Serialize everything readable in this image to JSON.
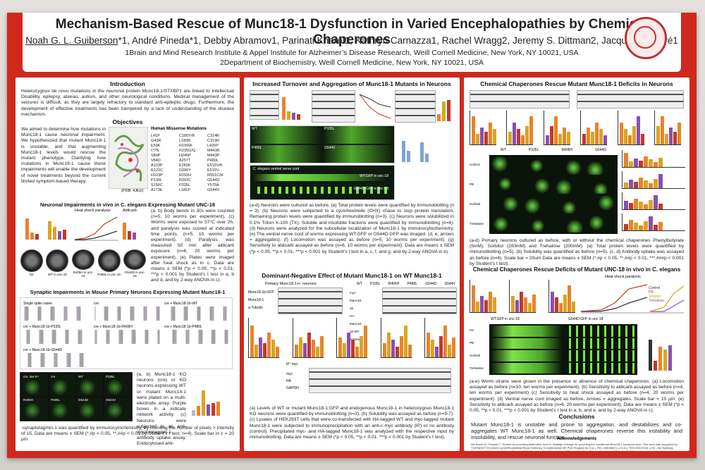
{
  "poster": {
    "title": "Mechanism-Based Rescue of Munc18-1 Dysfunction in Varied Encephalopathies by Chemical Chaperones",
    "authors_underlined": "Noah G. L. Guiberson",
    "authors_rest": "*1, André Pineda*1, Debby Abramov1, Parinati Kharel1, Kathryn Carnazza1, Rachel Wragg2, Jeremy S. Dittman2, Jacqueline Burré1",
    "affiliation1": "1Brain and Mind Research Institute & Appel Institute for Alzheimer’s Disease Research, Weill Cornell Medicine, New York, NY 10021, USA",
    "affiliation2": "2Department of Biochemistry, Weill Cornell Medicine, New York, NY 10021, USA"
  },
  "col1": {
    "intro_heading": "Introduction",
    "intro_text": "Heterozygous de novo mutations in the neuronal protein Munc18-1/STXBP1 are linked to Intellectual Disability, epilepsy, ataxias, autism, and other neurological conditions. Medical management of the seizures is difficult, as they are largely refractory to standard anti-epileptic drugs. Furthermore, the development of effective treatments has been hampered by a lack of understanding of the disease mechanism.",
    "objectives_heading": "Objectives",
    "objectives_text": "We aimed to determine how mutations in Munc18-1 cause neuronal impairment. We hypothesized that mutant Munc18-1 is unstable, and that augmenting Munc18-1 levels would rescue the mutant phenotype. Clarifying how mutations in Munc18-1 cause these impairments will enable the development of novel treatments beyond the current limited symptom-based therapy.",
    "missense_heading": "Human Missense Mutations",
    "missense_list": [
      "L41P",
      "C180Y/R",
      "C314R",
      "G43R",
      "L183R",
      "C319R",
      "E59K",
      "R190W",
      "L426P",
      "I77N",
      "R235G/Q",
      "M443R",
      "S80P",
      "H245P",
      "M443P",
      "V84D",
      "A257T",
      "P480L",
      "A103P",
      "E283K",
      "E515V/K",
      "R122C",
      "D286Y",
      "E515V",
      "H103P",
      "R292H",
      "R551C/H",
      "P130L",
      "R292C",
      "G544D",
      "S156C",
      "P335L",
      "Y575A",
      "A173E",
      "L341P",
      "G544V"
    ],
    "pdb_caption": "(PDB: 4JEU)",
    "celegans_heading": "Neuronal Impairments in vivo in C. elegans Expressing Mutant UNC-18",
    "celegans_caption": "(a, b) Body bends in 30s were counted (n=5, 10 worms per experiment). (c) Worms were exposed to 37°C over 2h, and paralysis was scored at indicated time points. (n=5, 10 worms per experiment). (d) Paralysis was measured 50 min after aldicarb exposure (n=6, 20 worms per experiment). (e) Plates were imaged after heat shock as in c. Data are means ± SEM (*p < 0.05; **p < 0.01; ***p < 0.001 by Student’s t test in a, b and d, and by 2-way ANOVA in c).",
    "heat_shock_label": "Heat shock paralysis",
    "aldicarb_label": "Aldicarb",
    "plate_labels": [
      "N2",
      "WT in unc-18",
      "R405H in unc-18",
      "P480L in unc-18",
      "G544D in unc-18"
    ],
    "synaptic_heading": "Synaptic Impairments in Mouse Primary Neurons Expressing Mutant Munc18-1",
    "synaptic_caption": "(a, b) Munc18-1 KO neurons (cre) or KO neurons expressing WT or mutant Munc18-1 were plated on a multi-electrode array. Purple boxes in a indicate network activity. (c) Neurons were subjected to an anti-synaptotagmin-1 antibody uptake assay. Endocytosed anti-",
    "synaptic_caption_end": "-synaptotagmin-1 was quantified by immunocytochemistry, by counting the number of pixels > intensity of 15. Data are means ± SEM (*,#p < 0.05, **,##p < 0.01 by Student’s t test; n=4). Scale bar in c = 20 µm",
    "mea_labels": [
      "Single spike raster",
      "cre",
      "cre + Munc18-1b-WT",
      "cre + Munc18-1b-P335L",
      "cre + Munc18-1b-R406H",
      "cre + Munc18-1b-P480L",
      "cre + Munc18-1b-G544D"
    ],
    "syt_labels": [
      "cre, low K+",
      "cre",
      "WT",
      "P335L",
      "R406H",
      "P480L",
      "G544D",
      "G544V"
    ]
  },
  "col2": {
    "turnover_heading": "Increased Turnover and Aggregation of Munc18-1 Mutants in Neurons",
    "turnover_caption": "(a-d) Neurons were cultured as before. (a) Total protein levels were quantified by immunoblotting (n = 3). (b) Neurons were subjected to a cycloheximide (CHX) chase to stop protein translation. Remaining protein levels were quantified by immunoblotting (n=3). (c) Neurons were solubilized in 0.1% Triton X-100 (TX). Soluble and insoluble fractions were quantified by immunoblotting (n=4). (d) Neurons were analyzed for the subcellular localization of Munc18-1 by immunocytochemistry. (e) The ventral nerve cord of worms expressing WT:GFP or G544D:GFP was imaged. (d, e; arrows = aggregates). (f) Locomotion was assayed as before (n=5, 10 worms per experiment). (g) Sensitivity to aldicarb assayed as before (n=6, 10 worms per experiment). Data are means ± SEM (*p < 0.05, **p < 0.01, ***p < 0.001 by Student’s t test in a, c, f, and g, and by 2-way ANOVA in b).",
    "nerve_cord_label": "C. elegans ventral nerve cord",
    "nerve_cord_wt": "WT:GFP in unc-18",
    "nerve_cord_mut": "G544D:GFP in unc-18",
    "neuron_panel_labels": [
      "WT",
      "P335L",
      "P480L",
      "G544V"
    ],
    "dn_heading": "Dominant-Negative Effect of Mutant Munc18-1 on WT Munc18-1",
    "dn_caption": "(a) Levels of WT or mutant Munc18-1:GFP and endogenous Munc18-1 in heterozygous Munc18-1 KO neurons were quantified by immunoblotting (n=3). (b) Solubility was assayed as before (n=5-7). (c) Lysates of HEK293T cells that were co-transfected with HA-tagged WT and myc-tagged mutant Munc18-1 were subjected to immunoprecipitation with an anti-c-myc antibody (IP) or no antibody (control). Precipitated myc- and HA-tagged Munc18-1 was analyzed with the respective input by immunoblotting. Data are means ± SEM (*p < 0.05, **p < 0.01, ***p < 0.001 by Student’s t test).",
    "dn_blot_title": "Primary Munc18-1+/- neurons",
    "dn_blot_rows": [
      "Munc18-1b:GFP",
      "Munc18-1",
      "a-Tubulin"
    ],
    "dn_b_columns": [
      "WT",
      "P335L",
      "R406H",
      "P480L",
      "G544D",
      "G544V"
    ],
    "dn_b_rows": [
      "myc-Munc18-1b",
      "HA-Munc18-1b-WT",
      "a-Tubulin"
    ],
    "dn_c_rows": [
      "myc",
      "HA",
      "GAPDH"
    ],
    "dn_c_ip": "IP: myc"
  },
  "col3": {
    "rescue_heading": "Chemical Chaperones Rescue Mutant Munc18-1 Deficits in Neurons",
    "rescue_caption": "(a-d) Primary neurons cultured as before, with or without the chemical chaperones Phenylbutyrate (5mM), Sorbitol (200mM) and Trehalose (200mM). (a) Total protein levels were quantified by immunoblotting (n=5). (b) Solubility was quantified as before (n=5). (c, d) Antibody uptake was assayed as before (n=4). Scale bar = 20um Data are means ± SEM (*,#p < 0.05, **,##p < 0.01, ***,###p < 0.001 by Student’s t test).",
    "rescue_col_labels": [
      "WT",
      "P335L",
      "R406H",
      "G544D"
    ],
    "rescue_row_labels": [
      "Control",
      "PB",
      "Sorbitol",
      "Trehalose"
    ],
    "celegans_rescue_heading": "Chemical Chaperones Rescue Deficits of Mutant UNC-18 in vivo in C. elegans",
    "celegans_rescue_caption": "(a-e) Worm strains were grown in the presence or absence of chemical chaperones. (a) Locomotion assayed as before (n=10, ten worms per experiment). (b) Sensitivity to aldicarb assayed as before (n=4, ten worms per experiment) (c) Sensitivity to heat shock assayed as before (n=4, 20 worms per experiment). (d) Ventral nerve cord imaged as before. Arrows = aggregates. Scale bar = 10 µm. (e) Sensitivity to aldicarb assayed as before (n=6, 20 worms per experiment). Data are means ± SEM (*p < 0.05, **p < 0.01, ***p < 0.001 by Student’s t test in a, b, and e, and by 2-way ANOVA in c).",
    "legend_labels": [
      "Control",
      "PB",
      "Sorbitol",
      "Trehalose"
    ],
    "cord_wt": "WT:GFP in unc-18",
    "cord_mut": "G544D:GFP in unc-18",
    "cord_rows": [
      "Ctr",
      "PB",
      "Sorbitol",
      "Trehalose"
    ],
    "heat_shock_label": "Heat shock paralysis",
    "conclusions_heading": "Conclusions",
    "conclusions_text": "Mutant Munc18-1 is unstable and prone to aggregation, and destabilizes and co-aggregates WT Munc18-1 as well. Chemical chaperones reverse this instability and insolubility, and rescue neuronal function.",
    "ack_heading": "Acknowledgements",
    "ack_text": "We thank Dr. Thomas C. Südhof for providing antibodies, and Dr. Matthijs Verhage for providing the conditional Munc18-1 knockout mice. This work was supported by T32GM007739 (Weill Cornell/Rockefeller/Sloan Kettering Tri-Institutional MD PhD Program for D.A.), R01-GM085874 (J.S.D.), R01-NS102181 (J.B.), the Epilepsy Foundation & American Epilepsy Society (J.B.), the Leon Levy Foundation (J.B.), and the Sanofi Innovation Awards Program (J.B.)."
  },
  "colors": {
    "poster_red": "#d0281c",
    "panel_white": "#ffffff",
    "bar_orange": "#e8842a",
    "bar_gold": "#d9a520",
    "bar_purple": "#8a4fb0",
    "bar_red": "#c0392b",
    "fluor_green": "#7fe34a"
  }
}
